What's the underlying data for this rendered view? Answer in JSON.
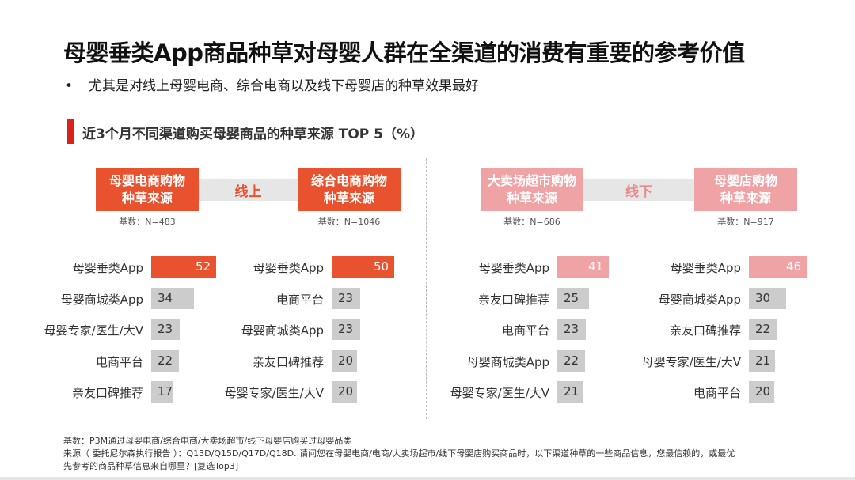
{
  "title": "母婴垂类App商品种草对母婴人群在全渠道的消费有重要的参考价值",
  "bullet": "尤其是对线上母婴电商、综合电商以及线下母婴店的种草效果最好",
  "bullet_marker": "•",
  "section_title": "近3个月不同渠道购买母婴商品的种草来源 TOP 5（%）",
  "groups": [
    {
      "connector": "线上",
      "type": "online"
    },
    {
      "connector": "线下",
      "type": "offline"
    }
  ],
  "colors": {
    "online": "#e8522e",
    "offline": "#f0a3a5",
    "grey": "#cccccc"
  },
  "chart_data": [
    {
      "type": "bar",
      "orientation": "horizontal",
      "title": "母婴电商购物\n种草来源",
      "base": "基数：N=483",
      "categories": [
        "母婴垂类App",
        "母婴商城类App",
        "母婴专家/医生/大V",
        "电商平台",
        "亲友口碑推荐"
      ],
      "values": [
        52,
        34,
        23,
        22,
        17
      ]
    },
    {
      "type": "bar",
      "orientation": "horizontal",
      "title": "综合电商购物\n种草来源",
      "base": "基数：N=1046",
      "categories": [
        "母婴垂类App",
        "电商平台",
        "母婴商城类App",
        "亲友口碑推荐",
        "母婴专家/医生/大V"
      ],
      "values": [
        50,
        23,
        23,
        20,
        20
      ]
    },
    {
      "type": "bar",
      "orientation": "horizontal",
      "title": "大卖场超市购物\n种草来源",
      "base": "基数：N=686",
      "categories": [
        "母婴垂类App",
        "亲友口碑推荐",
        "电商平台",
        "母婴商城类App",
        "母婴专家/医生/大V"
      ],
      "values": [
        41,
        25,
        23,
        22,
        21
      ]
    },
    {
      "type": "bar",
      "orientation": "horizontal",
      "title": "母婴店购物\n种草来源",
      "base": "基数：N=917",
      "categories": [
        "母婴垂类App",
        "母婴商城类App",
        "亲友口碑推荐",
        "母婴专家/医生/大V",
        "电商平台"
      ],
      "values": [
        46,
        30,
        22,
        21,
        20
      ]
    }
  ],
  "footnote": {
    "line1": "基数：P3M通过母婴电商/综合电商/大卖场超市/线下母婴店购买过母婴品类",
    "line2": "来源（ 委托尼尔森执行报告 ）：Q13D/Q15D/Q17D/Q18D. 请问您在母婴电商/电商/大卖场超市/线下母婴店购买商品时，以下渠道种草的一些商品信息，您最信赖的，或最优",
    "line3": "先参考的商品种草信息来自哪里？[复选Top3]"
  }
}
